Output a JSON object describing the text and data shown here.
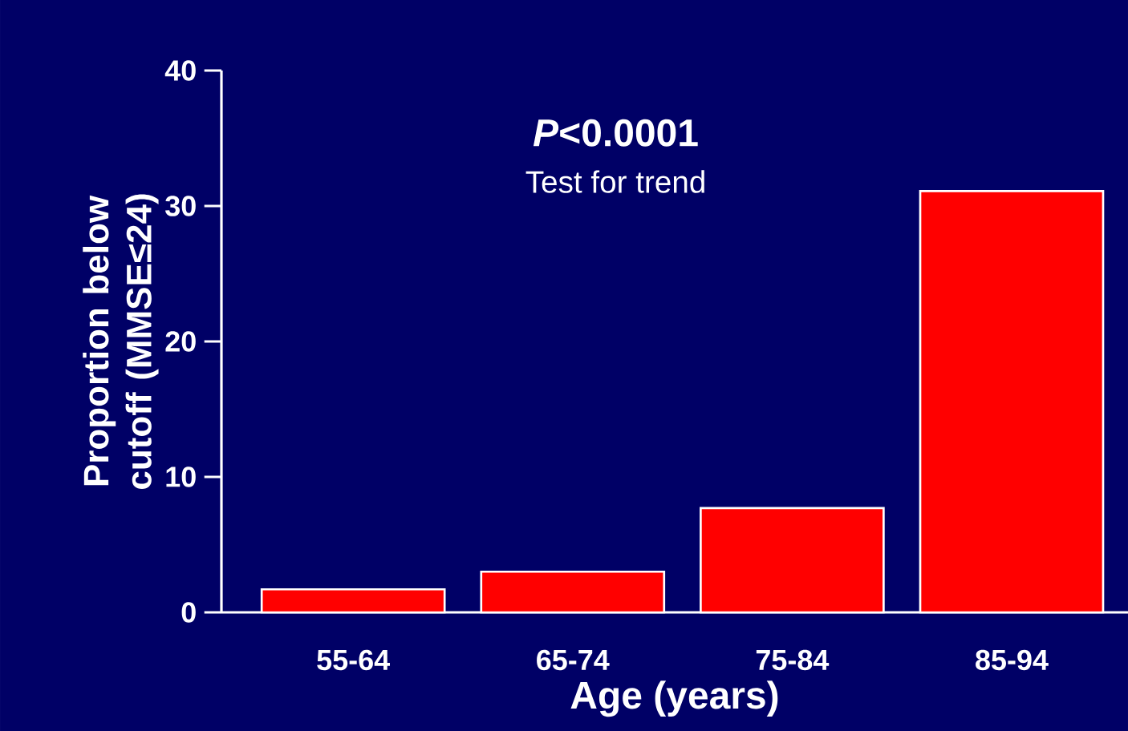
{
  "chart_data": {
    "type": "bar",
    "categories": [
      "55-64",
      "65-74",
      "75-84",
      "85-94"
    ],
    "values": [
      1.7,
      3.0,
      7.7,
      31.1
    ],
    "color": "#ff0000",
    "xlabel": "Age (years)",
    "ylabel": "Proportion below cutoff (MMSE≤24)",
    "ylim": [
      0,
      40
    ],
    "yticks": [
      0,
      10,
      20,
      30,
      40
    ],
    "annotations": [
      "*P*<0.0001",
      "Test for trend"
    ],
    "grid": false
  }
}
